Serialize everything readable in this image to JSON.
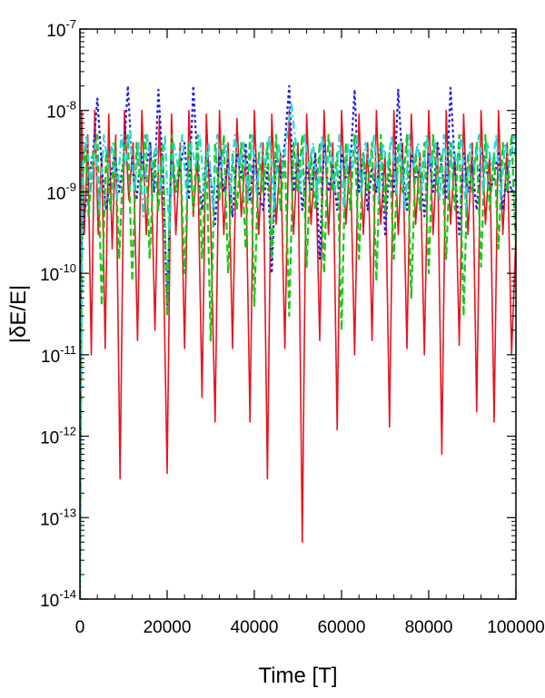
{
  "chart_data": {
    "type": "line",
    "title": "",
    "xlabel": "Time [T]",
    "ylabel": "|δE/E|",
    "xlim": [
      0,
      100000
    ],
    "ylim": [
      1e-14,
      1e-07
    ],
    "y_scale": "log",
    "grid": false,
    "legend": "none",
    "x_ticks": [
      {
        "value": 0,
        "label": "0"
      },
      {
        "value": 20000,
        "label": "20000"
      },
      {
        "value": 40000,
        "label": "40000"
      },
      {
        "value": 60000,
        "label": "60000"
      },
      {
        "value": 80000,
        "label": "80000"
      },
      {
        "value": 100000,
        "label": "100000"
      }
    ],
    "y_ticks": [
      {
        "exp": -7,
        "base": "10",
        "sup": "-7"
      },
      {
        "exp": -8,
        "base": "10",
        "sup": "-8"
      },
      {
        "exp": -9,
        "base": "10",
        "sup": "-9"
      },
      {
        "exp": -10,
        "base": "10",
        "sup": "-10"
      },
      {
        "exp": -11,
        "base": "10",
        "sup": "-11"
      },
      {
        "exp": -12,
        "base": "10",
        "sup": "-12"
      },
      {
        "exp": -13,
        "base": "10",
        "sup": "-13"
      },
      {
        "exp": -14,
        "base": "10",
        "sup": "-14"
      }
    ],
    "series": [
      {
        "color": "#e8141e",
        "style": "solid",
        "x": [
          0,
          400,
          1000,
          1800,
          2600,
          3400,
          4200,
          5000,
          5800,
          6600,
          7400,
          8200,
          9200,
          10200,
          11200,
          12200,
          13200,
          14200,
          15200,
          16200,
          17200,
          18200,
          19000,
          20000,
          21000,
          22000,
          23000,
          24000,
          25000,
          26000,
          27000,
          28000,
          29000,
          30000,
          31000,
          32000,
          33000,
          34000,
          35000,
          36000,
          37000,
          38000,
          39000,
          40000,
          41000,
          42000,
          43000,
          44000,
          45000,
          46000,
          47000,
          48000,
          49000,
          50000,
          51000,
          52000,
          53000,
          54000,
          55000,
          56000,
          57000,
          58000,
          59000,
          60000,
          61000,
          62000,
          63000,
          64000,
          65000,
          66000,
          67000,
          68000,
          69000,
          70000,
          71000,
          72000,
          73000,
          74000,
          75000,
          76000,
          77000,
          78000,
          79000,
          80000,
          81000,
          82000,
          83000,
          84000,
          85000,
          86000,
          87000,
          88000,
          89000,
          90000,
          91000,
          92000,
          93000,
          94000,
          95000,
          96000,
          97000,
          98000,
          99000,
          100000
        ],
        "y": [
          1e-14,
          1e-08,
          3e-10,
          5e-09,
          1e-11,
          1e-08,
          3e-10,
          3e-09,
          1.2e-11,
          9e-09,
          2e-10,
          5e-09,
          3e-13,
          1e-08,
          8e-10,
          4e-09,
          1.5e-11,
          1e-08,
          3e-10,
          4e-09,
          2e-11,
          8e-09,
          4e-10,
          3.5e-13,
          9e-09,
          3e-10,
          4e-09,
          1.2e-11,
          1e-08,
          5e-10,
          3e-09,
          3e-12,
          9e-09,
          4e-10,
          1.5e-12,
          1e-08,
          3e-10,
          4e-09,
          1.2e-11,
          8e-09,
          5e-10,
          3e-09,
          1.5e-12,
          1e-08,
          3e-10,
          4e-09,
          3e-13,
          9e-09,
          4e-10,
          3e-09,
          1.2e-11,
          1e-08,
          3e-10,
          4e-09,
          5e-14,
          9e-09,
          4e-10,
          3e-09,
          1.5e-11,
          1e-08,
          3e-10,
          4e-09,
          1.2e-12,
          1e-08,
          4e-10,
          3e-09,
          1e-11,
          9e-09,
          3e-10,
          4e-09,
          1.5e-11,
          1e-08,
          4e-10,
          3e-09,
          1.3e-12,
          1e-08,
          3e-10,
          4e-09,
          1.2e-11,
          9e-09,
          4e-10,
          3e-09,
          1e-11,
          1e-08,
          3e-10,
          4e-09,
          6e-13,
          1e-08,
          4e-10,
          3e-09,
          1.3e-11,
          9e-09,
          3e-10,
          4e-09,
          2e-12,
          1e-08,
          4e-10,
          3e-09,
          1.5e-12,
          1e-08,
          3e-10,
          4e-09,
          1e-11,
          3e-10
        ]
      },
      {
        "color": "#1e1ee8",
        "style": "dotted",
        "x": [
          0,
          300,
          1000,
          2000,
          3000,
          4000,
          5000,
          6000,
          7000,
          8000,
          9000,
          10000,
          11000,
          12000,
          13000,
          14000,
          15000,
          16000,
          17000,
          18000,
          19000,
          20000,
          21000,
          22000,
          23000,
          24000,
          25000,
          26000,
          27000,
          28000,
          29000,
          30000,
          31000,
          32000,
          33000,
          34000,
          35000,
          36000,
          37000,
          38000,
          39000,
          40000,
          41000,
          42000,
          43000,
          44000,
          45000,
          46000,
          47000,
          48000,
          49000,
          50000,
          51000,
          52000,
          53000,
          54000,
          55000,
          56000,
          57000,
          58000,
          59000,
          60000,
          61000,
          62000,
          63000,
          64000,
          65000,
          66000,
          67000,
          68000,
          69000,
          70000,
          71000,
          72000,
          73000,
          74000,
          75000,
          76000,
          77000,
          78000,
          79000,
          80000,
          81000,
          82000,
          83000,
          84000,
          85000,
          86000,
          87000,
          88000,
          89000,
          90000,
          91000,
          92000,
          93000,
          94000,
          95000,
          96000,
          97000,
          98000,
          99000,
          100000
        ],
        "y": [
          1e-14,
          2e-10,
          5e-10,
          1.5e-09,
          3e-09,
          1.4e-08,
          2e-09,
          6e-10,
          1.5e-09,
          3e-09,
          1e-09,
          2.5e-09,
          2e-08,
          2e-09,
          8e-10,
          3e-09,
          1.5e-09,
          4e-09,
          1e-09,
          1.8e-08,
          2e-09,
          4e-11,
          3e-09,
          1e-09,
          2e-09,
          4e-09,
          8e-10,
          2e-08,
          2e-09,
          6e-10,
          3e-09,
          1.5e-09,
          4e-10,
          3e-09,
          1e-09,
          2.5e-09,
          5e-10,
          3e-09,
          1.5e-09,
          4e-09,
          8e-10,
          3e-09,
          1e-09,
          6e-10,
          2e-09,
          1e-10,
          3e-09,
          1.5e-09,
          4e-09,
          2e-08,
          1e-09,
          3e-09,
          6e-10,
          2e-09,
          1e-09,
          3e-09,
          1.5e-10,
          4e-09,
          1e-09,
          2e-09,
          6e-10,
          3e-09,
          1.5e-09,
          2e-09,
          1.8e-08,
          1e-09,
          3e-09,
          6e-10,
          2e-09,
          1e-09,
          4e-09,
          3e-10,
          2e-09,
          1e-09,
          1.8e-08,
          2e-09,
          6e-10,
          3e-09,
          1.5e-09,
          2e-09,
          5e-10,
          3e-09,
          1e-09,
          4e-09,
          2e-09,
          8e-10,
          1.9e-08,
          2e-09,
          3e-10,
          3e-09,
          1e-09,
          2e-09,
          6e-10,
          3e-09,
          2.5e-09,
          1e-09,
          1.5e-09,
          3e-09,
          6e-10,
          2e-09,
          1e-09,
          1.5e-09
        ]
      },
      {
        "color": "#11cc11",
        "style": "dashed",
        "x": [
          0,
          500,
          1200,
          2000,
          3000,
          4000,
          5000,
          6000,
          7000,
          8000,
          9000,
          10000,
          11000,
          12000,
          13000,
          14000,
          15000,
          16000,
          17000,
          18000,
          19000,
          20000,
          21000,
          22000,
          23000,
          24000,
          25000,
          26000,
          27000,
          28000,
          29000,
          30000,
          31000,
          32000,
          33000,
          34000,
          35000,
          36000,
          37000,
          38000,
          39000,
          40000,
          41000,
          42000,
          43000,
          44000,
          45000,
          46000,
          47000,
          48000,
          49000,
          50000,
          51000,
          52000,
          53000,
          54000,
          55000,
          56000,
          57000,
          58000,
          59000,
          60000,
          61000,
          62000,
          63000,
          64000,
          65000,
          66000,
          67000,
          68000,
          69000,
          70000,
          71000,
          72000,
          73000,
          74000,
          75000,
          76000,
          77000,
          78000,
          79000,
          80000,
          81000,
          82000,
          83000,
          84000,
          85000,
          86000,
          87000,
          88000,
          89000,
          90000,
          91000,
          92000,
          93000,
          94000,
          95000,
          96000,
          97000,
          98000,
          99000,
          100000
        ],
        "y": [
          1e-14,
          1e-09,
          4e-09,
          5e-10,
          3e-09,
          5e-09,
          4e-11,
          3e-09,
          6e-10,
          4e-09,
          1.5e-10,
          3e-09,
          5e-09,
          8e-11,
          4e-09,
          1e-09,
          5e-09,
          1.5e-10,
          3e-09,
          6e-10,
          4e-09,
          3e-11,
          5e-09,
          1e-09,
          3e-09,
          1e-10,
          4e-09,
          6e-10,
          5e-09,
          1.5e-10,
          3e-09,
          1.5e-11,
          4e-09,
          8e-10,
          5e-09,
          1e-10,
          3e-09,
          6e-10,
          4e-09,
          2e-10,
          5e-09,
          4e-11,
          3e-09,
          1e-09,
          4e-09,
          1.5e-10,
          5e-09,
          6e-10,
          3e-09,
          3e-11,
          4e-09,
          1e-09,
          5e-09,
          1.2e-10,
          3e-09,
          6e-10,
          4e-09,
          1e-10,
          5e-09,
          1e-09,
          3e-09,
          2e-11,
          4e-09,
          6e-10,
          5e-09,
          1.5e-10,
          3e-09,
          1e-09,
          4e-09,
          8e-11,
          5e-09,
          6e-10,
          3e-09,
          1.5e-10,
          4e-09,
          1e-09,
          5e-09,
          5e-11,
          3e-09,
          6e-10,
          4e-09,
          1e-10,
          5e-09,
          1e-09,
          3e-09,
          1.5e-10,
          4e-09,
          6e-10,
          5e-09,
          3e-11,
          3e-09,
          1e-09,
          4e-09,
          1.2e-10,
          5e-09,
          6e-10,
          3e-09,
          2e-10,
          4e-09,
          1e-09,
          5e-09,
          2e-10
        ]
      },
      {
        "color": "#22d8d8",
        "style": "dash-dot",
        "x": [
          0,
          600,
          1500,
          2500,
          3500,
          4500,
          5500,
          6500,
          7500,
          8500,
          9500,
          10500,
          11500,
          12500,
          13500,
          14500,
          15500,
          16500,
          17500,
          18500,
          19500,
          20500,
          21500,
          22500,
          23500,
          24500,
          25500,
          26500,
          27500,
          28500,
          29500,
          30500,
          31500,
          32500,
          33500,
          34500,
          35500,
          36500,
          37500,
          38500,
          39500,
          40500,
          41500,
          42500,
          43500,
          44500,
          45500,
          46500,
          47500,
          48500,
          49500,
          50500,
          51500,
          52500,
          53500,
          54500,
          55500,
          56500,
          57500,
          58500,
          59500,
          60500,
          61500,
          62500,
          63500,
          64500,
          65500,
          66500,
          67500,
          68500,
          69500,
          70500,
          71500,
          72500,
          73500,
          74500,
          75500,
          76500,
          77500,
          78500,
          79500,
          80500,
          81500,
          82500,
          83500,
          84500,
          85500,
          86500,
          87500,
          88500,
          89500,
          90500,
          91500,
          92500,
          93500,
          94500,
          95500,
          96500,
          97500,
          98500,
          99500,
          100000
        ],
        "y": [
          1e-14,
          2e-09,
          5e-09,
          1e-09,
          4e-09,
          6e-10,
          5e-09,
          2e-09,
          4e-09,
          8e-10,
          5e-09,
          2e-09,
          6e-09,
          1e-09,
          4e-09,
          5e-10,
          5e-09,
          2e-09,
          4e-09,
          1e-09,
          5e-09,
          3e-10,
          4e-09,
          2e-09,
          5e-09,
          8e-10,
          4e-09,
          2e-09,
          5e-09,
          1e-09,
          4e-09,
          6e-10,
          5e-09,
          2e-09,
          4e-09,
          1e-09,
          5e-09,
          2e-09,
          4e-09,
          8e-10,
          5e-09,
          1e-09,
          4e-09,
          2e-09,
          5e-09,
          6e-10,
          4e-09,
          2e-09,
          5e-09,
          1.2e-08,
          4e-09,
          1e-09,
          5e-09,
          2e-09,
          4e-09,
          8e-10,
          5e-09,
          2e-09,
          4e-09,
          1e-09,
          5e-09,
          6e-10,
          4e-09,
          2e-09,
          5e-09,
          1e-09,
          4e-09,
          2e-09,
          5e-09,
          8e-10,
          4e-09,
          2e-09,
          5e-09,
          1e-09,
          4e-09,
          6e-10,
          5e-09,
          2e-09,
          4e-09,
          1e-09,
          5e-09,
          2e-09,
          4e-09,
          8e-10,
          5e-09,
          1e-09,
          4e-09,
          2e-09,
          5e-09,
          6e-10,
          4e-09,
          2e-09,
          5e-09,
          1e-09,
          4e-09,
          2e-09,
          5e-09,
          8e-10,
          4e-09,
          2e-09,
          5e-09,
          2e-09
        ]
      }
    ]
  }
}
